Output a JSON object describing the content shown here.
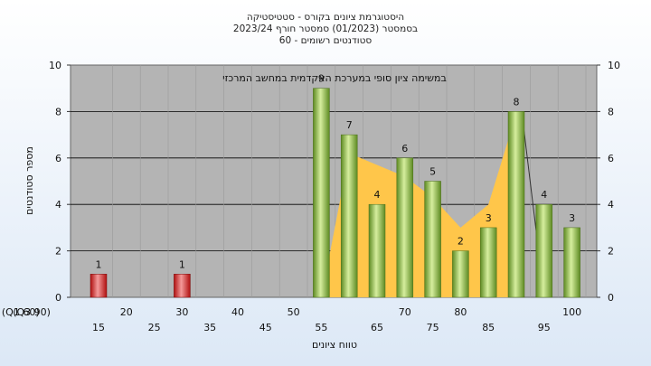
{
  "titles": [
    "היסטוגרמת ציונים בקורס - סטטיסטיקה",
    "בסמסטר  (01/2023)  סמסטר חורף 2023/24",
    "סטודנטים רשומים - 60"
  ],
  "chart_data": {
    "type": "bar",
    "categories": [
      "15",
      "20",
      "25",
      "30",
      "35",
      "40",
      "45",
      "50",
      "55",
      "60",
      "65",
      "70",
      "75",
      "80",
      "85",
      "90",
      "95",
      "100"
    ],
    "values": [
      1,
      0,
      0,
      1,
      0,
      0,
      0,
      0,
      9,
      7,
      4,
      6,
      5,
      2,
      3,
      8,
      4,
      3
    ],
    "failing_categories": [
      "15",
      "30"
    ],
    "area_polygon": [
      [
        "55",
        0
      ],
      [
        "60",
        6.2
      ],
      [
        "70",
        5.2
      ],
      [
        "75",
        4.3
      ],
      [
        "80",
        3
      ],
      [
        "85",
        4
      ],
      [
        "90",
        7.9
      ],
      [
        "90",
        0
      ]
    ],
    "x_tick_labels_row1": [
      "20",
      "30",
      "40",
      "50",
      "(Q1 60)",
      "70",
      "80",
      "(Q3 90)",
      "100"
    ],
    "x_tick_labels_row2": [
      "15",
      "25",
      "35",
      "45",
      "55",
      "65",
      "75",
      "85",
      "95"
    ],
    "ylim": [
      0,
      10
    ],
    "yticks": [
      0,
      2,
      4,
      6,
      8,
      10
    ],
    "ylabel": "מספר סטודנטים",
    "xlabel": "טווח ציונים",
    "annotation": "במשימה  ציון סופי במערכת האקדמית במחשב המרכזי",
    "grid": true,
    "colors": {
      "plot_bg": "#b4b4b4",
      "bar_green_light": "#d4ec9a",
      "bar_green_dark": "#6e9a2e",
      "bar_red_light": "#f08c8c",
      "bar_red_dark": "#c01818",
      "area_fill": "#ffc64a"
    }
  }
}
